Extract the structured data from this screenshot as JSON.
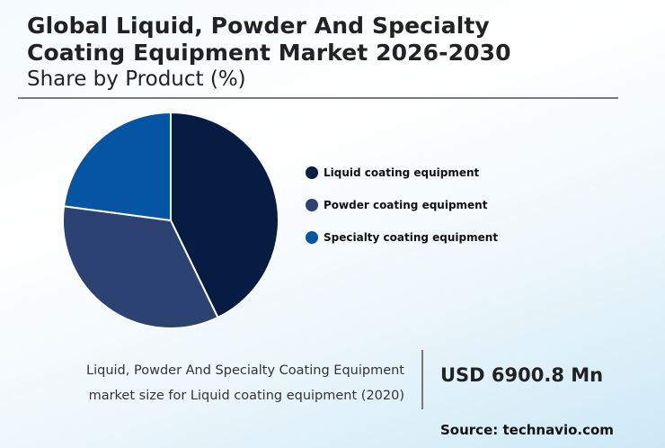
{
  "header": {
    "title_line1": "Global Liquid, Powder And Specialty",
    "title_line2": "Coating Equipment Market 2026-2030",
    "subtitle": "Share by Product (%)"
  },
  "legend": {
    "items": [
      {
        "label": "Liquid coating equipment",
        "color": "#071c42",
        "icon": "circle-marker"
      },
      {
        "label": "Powder coating equipment",
        "color": "#2c4273",
        "icon": "circle-marker"
      },
      {
        "label": "Specialty coating equipment",
        "color": "#0456a4",
        "icon": "circle-marker"
      }
    ]
  },
  "footer": {
    "description_line1": "Liquid, Powder And Specialty Coating Equipment",
    "description_line2": "market size for Liquid coating equipment (2020)",
    "value": "USD 6900.8 Mn",
    "source": "Source: technavio.com"
  },
  "chart_data": {
    "type": "pie",
    "title": "Global Liquid, Powder And Specialty Coating Equipment Market 2026-2030",
    "subtitle": "Share by Product (%)",
    "categories": [
      "Liquid coating equipment",
      "Powder coating equipment",
      "Specialty coating equipment"
    ],
    "values": [
      42.8,
      34.3,
      22.9
    ],
    "colors": [
      "#071c42",
      "#2c4273",
      "#0456a4"
    ],
    "start_angle": "12 o'clock, clockwise",
    "legend_position": "right",
    "annotation": "USD 6900.8 Mn — market size for Liquid coating equipment (2020)"
  }
}
